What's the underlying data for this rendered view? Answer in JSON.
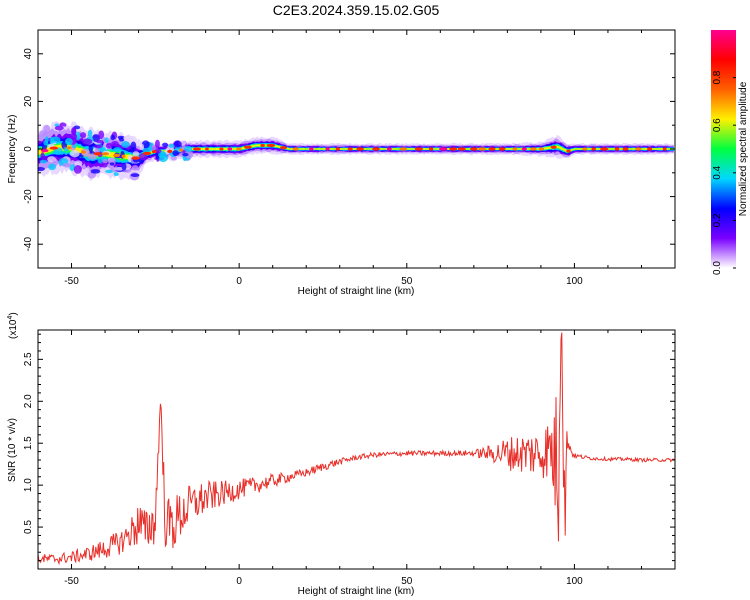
{
  "title": "C2E3.2024.359.15.02.G05",
  "chart_data": [
    {
      "type": "heatmap",
      "xlabel": "Height of straight line (km)",
      "ylabel": "Frequency (Hz)",
      "xlim": [
        -60,
        130
      ],
      "ylim": [
        -50,
        50
      ],
      "x_ticks": [
        -50,
        0,
        50,
        100
      ],
      "y_ticks": [
        -40,
        -20,
        0,
        20,
        40
      ],
      "colorbar": {
        "label": "Normalized spectral amplitude",
        "range": [
          0.0,
          1.0
        ],
        "ticks": [
          0.0,
          0.2,
          0.4,
          0.6,
          0.8
        ],
        "tick_labels": [
          "0.0",
          "0.2",
          "0.4",
          "0.6",
          "0.8"
        ],
        "colormap": [
          "#ffffff",
          "#7a00ff",
          "#0000ff",
          "#00d8ff",
          "#00ff40",
          "#fff000",
          "#ff6000",
          "#ff0000",
          "#ff0090"
        ]
      },
      "ridge": {
        "x": [
          -60,
          -55,
          -50,
          -45,
          -40,
          -35,
          -30,
          -28,
          -25,
          -20,
          -15,
          -10,
          -5,
          0,
          5,
          10,
          15,
          20,
          30,
          40,
          50,
          60,
          70,
          80,
          90,
          95,
          98,
          100,
          110,
          120,
          130
        ],
        "freq": [
          -1.5,
          0.5,
          0.5,
          -2,
          -2,
          -3,
          -4,
          -2,
          -1,
          -1,
          0,
          0,
          0,
          0,
          1.5,
          1.5,
          0,
          0,
          0,
          0,
          0,
          0,
          0,
          0,
          0,
          1,
          -1,
          0,
          0,
          0,
          0
        ],
        "width": [
          8,
          9,
          9,
          9,
          8,
          8,
          7,
          4,
          3,
          3,
          3,
          3,
          3,
          3,
          3,
          3,
          2,
          2,
          2,
          2,
          2,
          2,
          2,
          2,
          2.5,
          4,
          3,
          2,
          2,
          2,
          2
        ]
      }
    },
    {
      "type": "line",
      "xlabel": "Height of straight line (km)",
      "ylabel": "SNR (10 * v/v)",
      "y_multiplier": "(x10",
      "y_multiplier_exp": "4",
      "y_multiplier_close": ")",
      "xlim": [
        -60,
        130
      ],
      "ylim": [
        0.0,
        2.85
      ],
      "x_ticks": [
        -50,
        0,
        50,
        100
      ],
      "y_ticks": [
        0.5,
        1.0,
        1.5,
        2.0,
        2.5
      ],
      "y_tick_labels": [
        "0.5",
        "1.0",
        "1.5",
        "2.0",
        "2.5"
      ],
      "color": "#e8302a",
      "series": [
        {
          "x": [
            -60,
            -55,
            -50,
            -45,
            -40,
            -35,
            -32,
            -30,
            -28,
            -25,
            -23.5,
            -22,
            -20,
            -15,
            -10,
            -5,
            0,
            5,
            10,
            15,
            20,
            25,
            30,
            35,
            40,
            45,
            50,
            55,
            60,
            65,
            70,
            75,
            80,
            85,
            90,
            93,
            95,
            96,
            97,
            98,
            99,
            100,
            105,
            110,
            115,
            120,
            125,
            130
          ],
          "y": [
            0.12,
            0.12,
            0.14,
            0.18,
            0.24,
            0.33,
            0.45,
            0.55,
            0.45,
            0.58,
            1.97,
            0.55,
            0.52,
            0.75,
            0.85,
            0.9,
            0.95,
            1.0,
            1.05,
            1.1,
            1.15,
            1.22,
            1.28,
            1.33,
            1.36,
            1.37,
            1.38,
            1.38,
            1.38,
            1.38,
            1.38,
            1.38,
            1.38,
            1.38,
            1.38,
            1.45,
            1.1,
            2.8,
            0.9,
            1.6,
            1.4,
            1.35,
            1.32,
            1.31,
            1.31,
            1.3,
            1.3,
            1.3
          ],
          "noise": [
            0.06,
            0.06,
            0.07,
            0.09,
            0.12,
            0.15,
            0.2,
            0.3,
            0.25,
            0.3,
            0.3,
            0.3,
            0.35,
            0.25,
            0.2,
            0.15,
            0.12,
            0.1,
            0.08,
            0.06,
            0.05,
            0.05,
            0.04,
            0.03,
            0.03,
            0.03,
            0.03,
            0.03,
            0.03,
            0.03,
            0.04,
            0.1,
            0.2,
            0.25,
            0.3,
            0.4,
            0.8,
            0.3,
            0.5,
            0.2,
            0.05,
            0.03,
            0.02,
            0.02,
            0.02,
            0.02,
            0.02,
            0.02
          ]
        }
      ]
    }
  ]
}
